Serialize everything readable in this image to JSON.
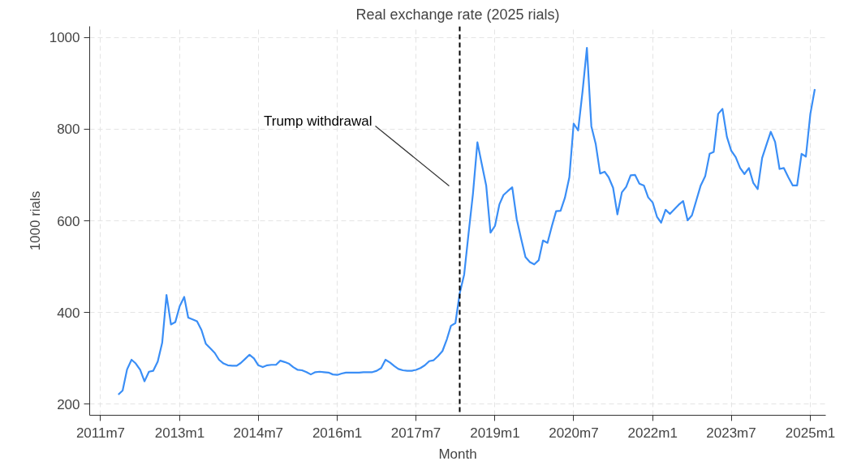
{
  "chart_data": {
    "type": "line",
    "title": "Real exchange rate (2025 rials)",
    "xlabel": "Month",
    "ylabel": "1000 rials",
    "x": [
      "2011-11",
      "2011-12",
      "2012-01",
      "2012-02",
      "2012-03",
      "2012-04",
      "2012-05",
      "2012-06",
      "2012-07",
      "2012-08",
      "2012-09",
      "2012-10",
      "2012-11",
      "2012-12",
      "2013-01",
      "2013-02",
      "2013-03",
      "2013-04",
      "2013-05",
      "2013-06",
      "2013-07",
      "2013-08",
      "2013-09",
      "2013-10",
      "2013-11",
      "2013-12",
      "2014-01",
      "2014-02",
      "2014-03",
      "2014-04",
      "2014-05",
      "2014-06",
      "2014-07",
      "2014-08",
      "2014-09",
      "2014-10",
      "2014-11",
      "2014-12",
      "2015-01",
      "2015-02",
      "2015-03",
      "2015-04",
      "2015-05",
      "2015-06",
      "2015-07",
      "2015-08",
      "2015-09",
      "2015-10",
      "2015-11",
      "2015-12",
      "2016-01",
      "2016-02",
      "2016-03",
      "2016-04",
      "2016-05",
      "2016-06",
      "2016-07",
      "2016-08",
      "2016-09",
      "2016-10",
      "2016-11",
      "2016-12",
      "2017-01",
      "2017-02",
      "2017-03",
      "2017-04",
      "2017-05",
      "2017-06",
      "2017-07",
      "2017-08",
      "2017-09",
      "2017-10",
      "2017-11",
      "2017-12",
      "2018-01",
      "2018-02",
      "2018-03",
      "2018-04",
      "2018-05",
      "2018-06",
      "2018-07",
      "2018-08",
      "2018-09",
      "2018-10",
      "2018-11",
      "2018-12",
      "2019-01",
      "2019-02",
      "2019-03",
      "2019-04",
      "2019-05",
      "2019-06",
      "2019-07",
      "2019-08",
      "2019-09",
      "2019-10",
      "2019-11",
      "2019-12",
      "2020-01",
      "2020-02",
      "2020-03",
      "2020-04",
      "2020-05",
      "2020-06",
      "2020-07",
      "2020-08",
      "2020-09",
      "2020-10",
      "2020-11",
      "2020-12",
      "2021-01",
      "2021-02",
      "2021-03",
      "2021-04",
      "2021-05",
      "2021-06",
      "2021-07",
      "2021-08",
      "2021-09",
      "2021-10",
      "2021-11",
      "2021-12",
      "2022-01",
      "2022-02",
      "2022-03",
      "2022-04",
      "2022-05",
      "2022-06",
      "2022-07",
      "2022-08",
      "2022-09",
      "2022-10",
      "2022-11",
      "2022-12",
      "2023-01",
      "2023-02",
      "2023-03",
      "2023-04",
      "2023-05",
      "2023-06",
      "2023-07",
      "2023-08",
      "2023-09",
      "2023-10",
      "2023-11",
      "2023-12",
      "2024-01",
      "2024-02",
      "2024-03",
      "2024-04",
      "2024-05",
      "2024-06",
      "2024-07",
      "2024-08",
      "2024-09",
      "2024-10",
      "2024-11",
      "2024-12",
      "2025-01",
      "2025-02"
    ],
    "series": [
      {
        "color": "#3a8ef6",
        "values": [
          221,
          230,
          276,
          297,
          289,
          275,
          250,
          271,
          273,
          293,
          334,
          438,
          374,
          379,
          414,
          434,
          389,
          385,
          381,
          362,
          332,
          322,
          312,
          297,
          289,
          285,
          284,
          284,
          290,
          299,
          308,
          300,
          285,
          281,
          285,
          286,
          286,
          295,
          292,
          288,
          281,
          275,
          274,
          270,
          265,
          270,
          271,
          270,
          269,
          265,
          264,
          267,
          269,
          269,
          269,
          269,
          270,
          270,
          270,
          273,
          279,
          297,
          291,
          283,
          277,
          274,
          273,
          273,
          275,
          279,
          285,
          294,
          296,
          305,
          316,
          342,
          371,
          377,
          442,
          483,
          571,
          659,
          771,
          724,
          677,
          574,
          589,
          636,
          656,
          665,
          673,
          604,
          562,
          521,
          510,
          505,
          514,
          557,
          552,
          589,
          621,
          622,
          650,
          695,
          812,
          797,
          883,
          977,
          806,
          768,
          703,
          707,
          695,
          672,
          614,
          662,
          674,
          699,
          700,
          681,
          677,
          651,
          640,
          608,
          596,
          624,
          615,
          625,
          635,
          643,
          601,
          612,
          645,
          677,
          697,
          746,
          750,
          833,
          844,
          783,
          753,
          739,
          715,
          702,
          715,
          683,
          669,
          737,
          765,
          794,
          772,
          713,
          715,
          695,
          677,
          677,
          746,
          740,
          833,
          887
        ]
      }
    ],
    "xlim": [
      "2011-04-16",
      "2025-04-18"
    ],
    "xticks": [
      {
        "value": "2011-07",
        "label": "2011m7"
      },
      {
        "value": "2013-01",
        "label": "2013m1"
      },
      {
        "value": "2014-07",
        "label": "2014m7"
      },
      {
        "value": "2016-01",
        "label": "2016m1"
      },
      {
        "value": "2017-07",
        "label": "2017m7"
      },
      {
        "value": "2019-01",
        "label": "2019m1"
      },
      {
        "value": "2020-07",
        "label": "2020m7"
      },
      {
        "value": "2022-01",
        "label": "2022m1"
      },
      {
        "value": "2023-07",
        "label": "2023m7"
      },
      {
        "value": "2025-01",
        "label": "2025m1"
      }
    ],
    "ylim": [
      176,
      1024
    ],
    "yticks": [
      200,
      400,
      600,
      800,
      1000
    ],
    "ref_lines": [
      {
        "axis": "x",
        "value": "2018-05",
        "label": "Trump withdrawal",
        "color": "#000000",
        "line_style": "dashed"
      }
    ],
    "grid": true,
    "line_style": "solid",
    "marker": "none"
  }
}
